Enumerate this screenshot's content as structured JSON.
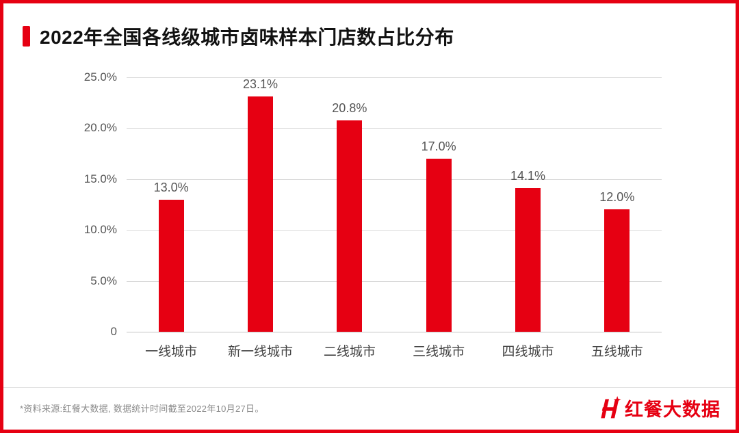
{
  "page": {
    "title": "2022年全国各线级城市卤味样本门店数占比分布",
    "accent_color": "#e60012"
  },
  "chart_data": {
    "type": "bar",
    "title": "2022年全国各线级城市卤味样本门店数占比分布",
    "categories": [
      "一线城市",
      "新一线城市",
      "二线城市",
      "三线城市",
      "四线城市",
      "五线城市"
    ],
    "values": [
      13.0,
      23.1,
      20.8,
      17.0,
      14.1,
      12.0
    ],
    "value_labels": [
      "13.0%",
      "23.1%",
      "20.8%",
      "17.0%",
      "14.1%",
      "12.0%"
    ],
    "ylim": [
      0,
      25
    ],
    "y_ticks": [
      "25.0%",
      "20.0%",
      "15.0%",
      "10.0%",
      "5.0%",
      "0"
    ],
    "grid": true,
    "legend_position": "none",
    "bar_color": "#e60012",
    "xlabel": "",
    "ylabel": ""
  },
  "footer": {
    "source_note": "*资料来源:红餐大数据, 数据统计时间截至2022年10月27日。",
    "logo_text": "红餐大数据"
  }
}
